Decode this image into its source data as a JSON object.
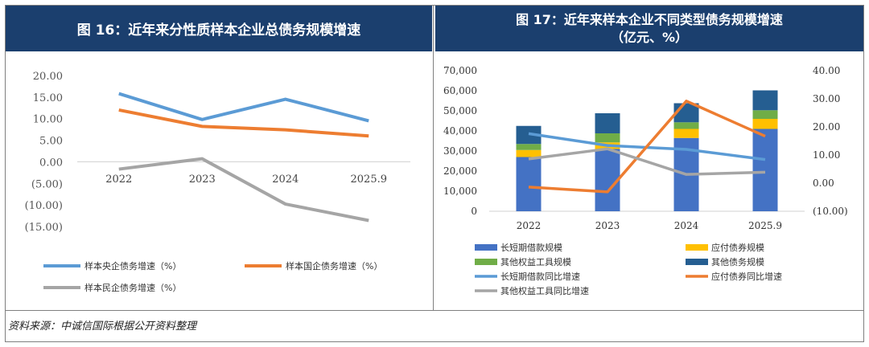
{
  "left_title": "图 16：近年来分性质样本企业总债务规模增速",
  "right_title_line1": "图 17：近年来样本企业不同类型债务规模增速",
  "right_title_line2": "（亿元、%）",
  "source": "资料来源：中诚信国际根据公开资料整理",
  "chart_data": [
    {
      "type": "line",
      "title": "图 16：近年来分性质样本企业总债务规模增速",
      "categories": [
        "2022",
        "2023",
        "2024",
        "2025.9"
      ],
      "yticks": [
        "20.00",
        "15.00",
        "10.00",
        "5.00",
        "0.00",
        "(5.00)",
        "(10.00)",
        "(15.00)"
      ],
      "ylim": [
        -15,
        20
      ],
      "series": [
        {
          "name": "样本央企债务增速（%）",
          "color": "#5b9bd5",
          "values": [
            15.8,
            9.8,
            14.5,
            9.5
          ]
        },
        {
          "name": "样本国企债务增速（%）",
          "color": "#ed7d31",
          "values": [
            12.0,
            8.2,
            7.4,
            6.0
          ]
        },
        {
          "name": "样本民企债务增速（%）",
          "color": "#a5a5a5",
          "values": [
            -1.7,
            0.7,
            -9.8,
            -13.6
          ]
        }
      ]
    },
    {
      "type": "bar",
      "stacked": true,
      "title": "图 17：近年来样本企业不同类型债务规模增速（亿元、%）",
      "categories": [
        "2022",
        "2023",
        "2024",
        "2025.9"
      ],
      "yticks_left": [
        "70,000",
        "60,000",
        "50,000",
        "40,000",
        "30,000",
        "20,000",
        "10,000",
        "0"
      ],
      "yticks_right": [
        "40.00",
        "30.00",
        "20.00",
        "10.00",
        "0.00",
        "(10.00)"
      ],
      "ylim_left": [
        0,
        70000
      ],
      "ylim_right": [
        -10,
        40
      ],
      "bar_series": [
        {
          "name": "长短期借款规模",
          "color": "#4472c4",
          "values": [
            27000,
            31000,
            36500,
            41000
          ]
        },
        {
          "name": "应付债券规模",
          "color": "#ffc000",
          "values": [
            3500,
            3300,
            4500,
            5000
          ]
        },
        {
          "name": "其他权益工具规模",
          "color": "#70ad47",
          "values": [
            3000,
            4500,
            3300,
            4300
          ]
        },
        {
          "name": "其他债务规模",
          "color": "#255e91",
          "values": [
            9000,
            10000,
            9500,
            9900
          ]
        }
      ],
      "line_series": [
        {
          "name": "长短期借款同比增速",
          "color": "#5b9bd5",
          "values": [
            17.6,
            13.4,
            12.0,
            8.4
          ]
        },
        {
          "name": "应付债券同比增速",
          "color": "#ed7d31",
          "values": [
            -1.4,
            -3.1,
            29.2,
            16.7
          ]
        },
        {
          "name": "其他权益工具同比增速",
          "color": "#a5a5a5",
          "values": [
            8.6,
            12.2,
            3.1,
            3.9
          ]
        }
      ],
      "legend": [
        "长短期借款规模",
        "应付债券规模",
        "其他权益工具规模",
        "其他债务规模",
        "长短期借款同比增速",
        "应付债券同比增速",
        "其他权益工具同比增速"
      ]
    }
  ]
}
